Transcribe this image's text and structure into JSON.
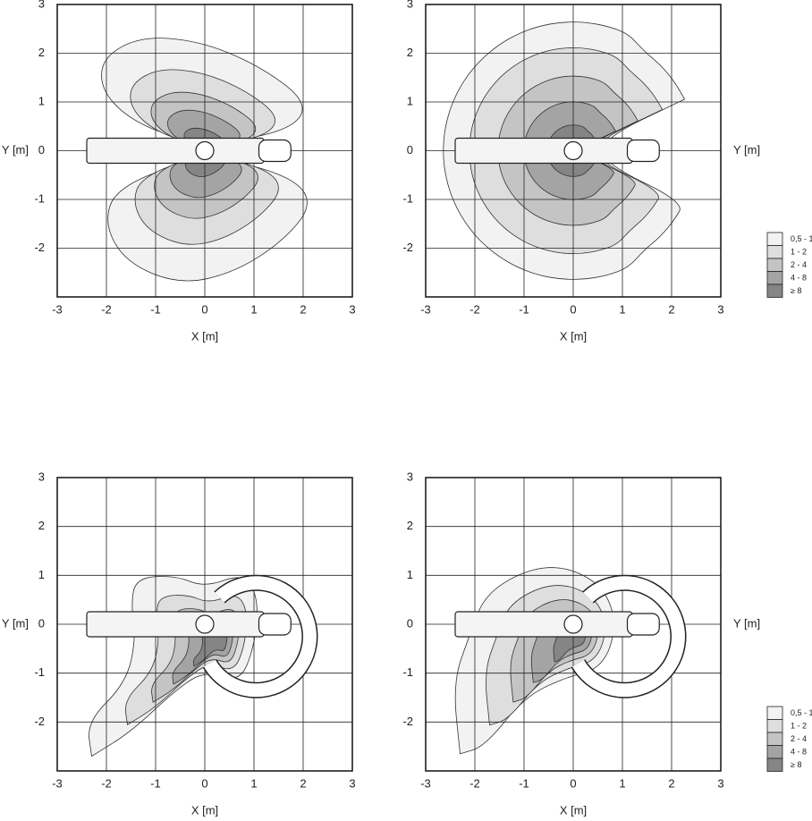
{
  "chart_data": [
    {
      "type": "contour",
      "xlabel": "X [m]",
      "ylabel": "Y [m]",
      "ylabel_side": "left",
      "xlim": [
        -3,
        3
      ],
      "ylim": [
        -3,
        3
      ],
      "xticks": [
        -3,
        -2,
        -1,
        0,
        1,
        2,
        3
      ],
      "yticks": [
        -2,
        -1,
        0,
        1,
        2,
        3
      ],
      "grid": true
    },
    {
      "type": "contour",
      "xlabel": "X [m]",
      "ylabel": "Y [m]",
      "ylabel_side": "right",
      "xlim": [
        -3,
        3
      ],
      "ylim": [
        -3,
        3
      ],
      "xticks": [
        -3,
        -2,
        -1,
        0,
        1,
        2,
        3
      ],
      "yticks": [
        -2,
        -1,
        0,
        1,
        2,
        3
      ],
      "grid": true,
      "legend": {
        "labels": [
          "0,5 - 1",
          "1 - 2",
          "2 - 4",
          "4 - 8",
          "≥ 8"
        ],
        "colors": [
          "#f2f2f2",
          "#dedede",
          "#c4c4c4",
          "#a4a4a4",
          "#858585"
        ]
      }
    },
    {
      "type": "contour",
      "xlabel": "X [m]",
      "ylabel": "Y [m]",
      "ylabel_side": "left",
      "xlim": [
        -3,
        3
      ],
      "ylim": [
        -3,
        3
      ],
      "xticks": [
        -3,
        -2,
        -1,
        0,
        1,
        2,
        3
      ],
      "yticks": [
        -2,
        -1,
        0,
        1,
        2,
        3
      ],
      "grid": true
    },
    {
      "type": "contour",
      "xlabel": "X [m]",
      "ylabel": "Y [m]",
      "ylabel_side": "right",
      "xlim": [
        -3,
        3
      ],
      "ylim": [
        -3,
        3
      ],
      "xticks": [
        -3,
        -2,
        -1,
        0,
        1,
        2,
        3
      ],
      "yticks": [
        -2,
        -1,
        0,
        1,
        2,
        3
      ],
      "grid": true,
      "legend": {
        "labels": [
          "0,5 - 1",
          "1 - 2",
          "2 - 4",
          "4 - 8",
          "≥ 8"
        ],
        "colors": [
          "#f2f2f2",
          "#dedede",
          "#c4c4c4",
          "#a4a4a4",
          "#858585"
        ]
      }
    }
  ]
}
